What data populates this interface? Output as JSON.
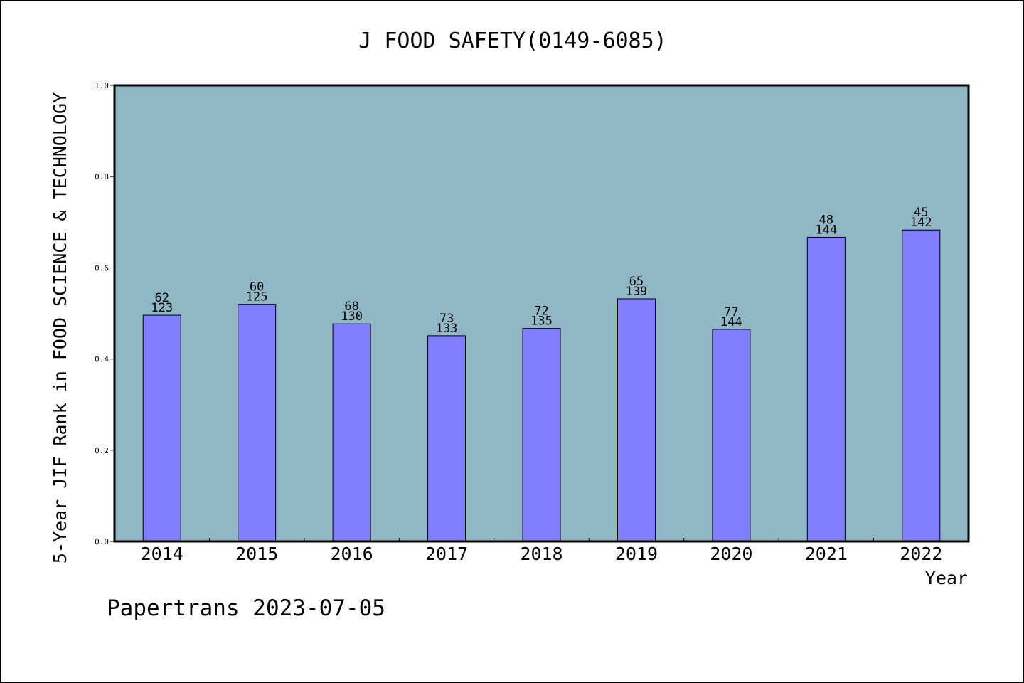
{
  "chart_data": {
    "type": "bar",
    "title": "J FOOD SAFETY(0149-6085)",
    "xlabel": "Year",
    "ylabel": "5-Year JIF Rank in FOOD SCIENCE & TECHNOLOGY",
    "ylim": [
      0,
      1.0
    ],
    "yticks": [
      "0.0",
      "0.2",
      "0.4",
      "0.6",
      "0.8",
      "1.0"
    ],
    "ytick_values": [
      0.0,
      0.2,
      0.4,
      0.6,
      0.8,
      1.0
    ],
    "categories": [
      "2014",
      "2015",
      "2016",
      "2017",
      "2018",
      "2019",
      "2020",
      "2021",
      "2022"
    ],
    "values": [
      0.496,
      0.52,
      0.477,
      0.451,
      0.467,
      0.532,
      0.465,
      0.667,
      0.683
    ],
    "rank": [
      "62",
      "60",
      "68",
      "73",
      "72",
      "65",
      "77",
      "48",
      "45"
    ],
    "total": [
      "123",
      "125",
      "130",
      "133",
      "135",
      "139",
      "144",
      "144",
      "142"
    ],
    "grid": false,
    "plot_background": "#8fb7c5",
    "bar_color": "#8080ff"
  },
  "footer": {
    "credit": "Papertrans 2023-07-05"
  }
}
